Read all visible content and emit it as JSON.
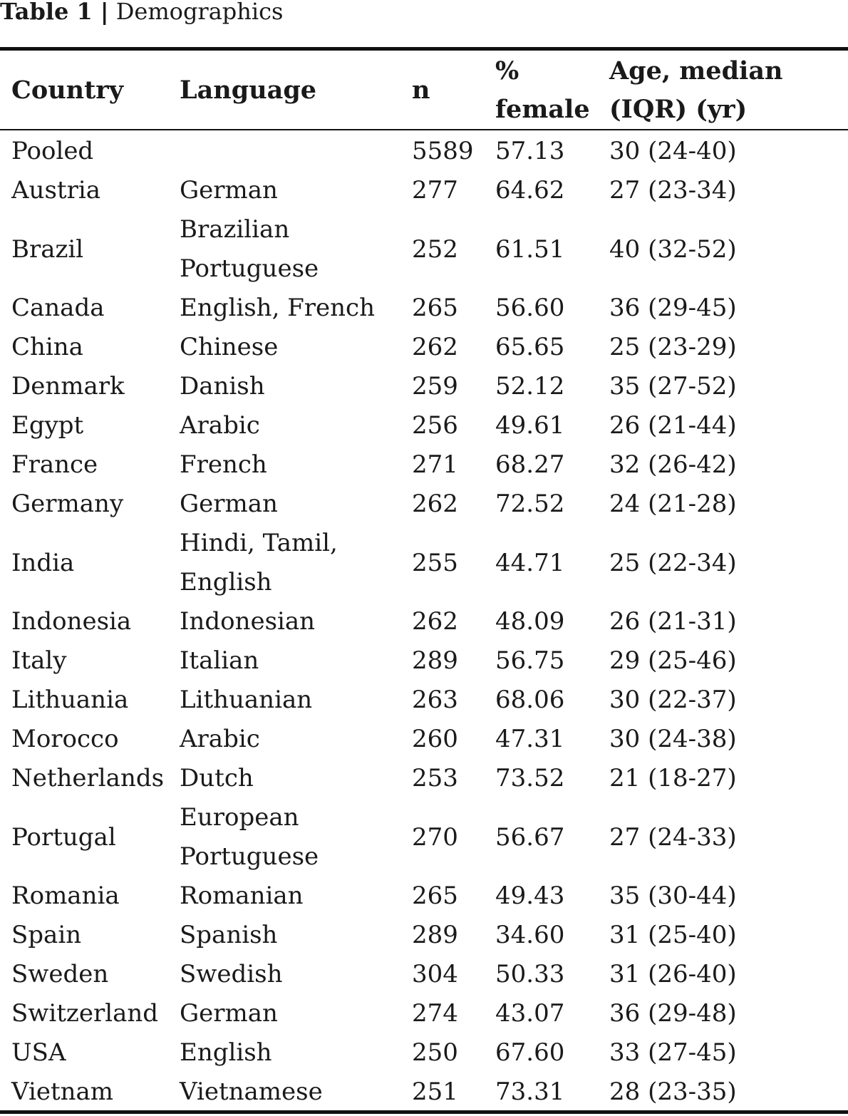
{
  "caption": {
    "number": "Table 1 |",
    "title": "Demographics"
  },
  "columns": {
    "country": "Country",
    "language": "Language",
    "n": "n",
    "female": "% female",
    "age": "Age, median (IQR) (yr)"
  },
  "rows": [
    {
      "country": "Pooled",
      "language": "",
      "n": "5589",
      "female": "57.13",
      "age": "30 (24-40)"
    },
    {
      "country": "Austria",
      "language": "German",
      "n": "277",
      "female": "64.62",
      "age": "27 (23-34)"
    },
    {
      "country": "Brazil",
      "language": "Brazilian Portuguese",
      "n": "252",
      "female": "61.51",
      "age": "40 (32-52)"
    },
    {
      "country": "Canada",
      "language": "English, French",
      "n": "265",
      "female": "56.60",
      "age": "36 (29-45)"
    },
    {
      "country": "China",
      "language": "Chinese",
      "n": "262",
      "female": "65.65",
      "age": "25 (23-29)"
    },
    {
      "country": "Denmark",
      "language": "Danish",
      "n": "259",
      "female": "52.12",
      "age": "35 (27-52)"
    },
    {
      "country": "Egypt",
      "language": "Arabic",
      "n": "256",
      "female": "49.61",
      "age": "26 (21-44)"
    },
    {
      "country": "France",
      "language": "French",
      "n": "271",
      "female": "68.27",
      "age": "32 (26-42)"
    },
    {
      "country": "Germany",
      "language": "German",
      "n": "262",
      "female": "72.52",
      "age": "24 (21-28)"
    },
    {
      "country": "India",
      "language": "Hindi, Tamil, English",
      "n": "255",
      "female": "44.71",
      "age": "25 (22-34)"
    },
    {
      "country": "Indonesia",
      "language": "Indonesian",
      "n": "262",
      "female": "48.09",
      "age": "26 (21-31)"
    },
    {
      "country": "Italy",
      "language": "Italian",
      "n": "289",
      "female": "56.75",
      "age": "29 (25-46)"
    },
    {
      "country": "Lithuania",
      "language": "Lithuanian",
      "n": "263",
      "female": "68.06",
      "age": "30 (22-37)"
    },
    {
      "country": "Morocco",
      "language": "Arabic",
      "n": "260",
      "female": "47.31",
      "age": "30 (24-38)"
    },
    {
      "country": "Netherlands",
      "language": "Dutch",
      "n": "253",
      "female": "73.52",
      "age": "21 (18-27)"
    },
    {
      "country": "Portugal",
      "language": "European Portuguese",
      "n": "270",
      "female": "56.67",
      "age": "27 (24-33)"
    },
    {
      "country": "Romania",
      "language": "Romanian",
      "n": "265",
      "female": "49.43",
      "age": "35 (30-44)"
    },
    {
      "country": "Spain",
      "language": "Spanish",
      "n": "289",
      "female": "34.60",
      "age": "31 (25-40)"
    },
    {
      "country": "Sweden",
      "language": "Swedish",
      "n": "304",
      "female": "50.33",
      "age": "31 (26-40)"
    },
    {
      "country": "Switzerland",
      "language": "German",
      "n": "274",
      "female": "43.07",
      "age": "36 (29-48)"
    },
    {
      "country": "USA",
      "language": "English",
      "n": "250",
      "female": "67.60",
      "age": "33 (27-45)"
    },
    {
      "country": "Vietnam",
      "language": "Vietnamese",
      "n": "251",
      "female": "73.31",
      "age": "28 (23-35)"
    }
  ]
}
